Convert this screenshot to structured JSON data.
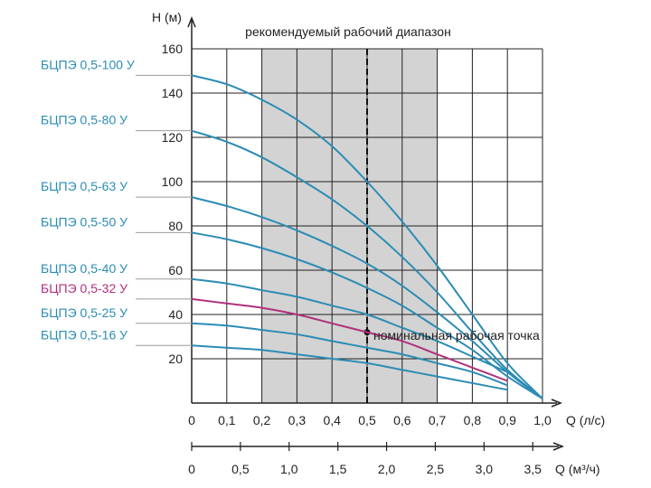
{
  "chart_data": {
    "type": "line",
    "title": "",
    "ylabel": "H (м)",
    "xlabel": "Q (л/с)",
    "xlabel_secondary": "Q (м³/ч)",
    "xlim": [
      0,
      1.0
    ],
    "ylim": [
      0,
      160
    ],
    "xticks": [
      0,
      0.1,
      0.2,
      0.3,
      0.4,
      0.5,
      0.6,
      0.7,
      0.8,
      0.9,
      1.0
    ],
    "xtick_labels": [
      "0",
      "0,1",
      "0,2",
      "0,3",
      "0,4",
      "0,5",
      "0,6",
      "0,7",
      "0,8",
      "0,9",
      "1,0"
    ],
    "yticks": [
      20,
      40,
      60,
      80,
      100,
      120,
      140,
      160
    ],
    "ytick_labels": [
      "20",
      "40",
      "60",
      "80",
      "100",
      "120",
      "140",
      "160"
    ],
    "secondary_xaxis": {
      "ticks": [
        0,
        0.5,
        1.0,
        1.5,
        2.0,
        2.5,
        3.0,
        3.5
      ],
      "tick_labels": [
        "0",
        "0,5",
        "1,0",
        "1,5",
        "2,0",
        "2,5",
        "3,0",
        "3,5"
      ],
      "lim": [
        0,
        3.6
      ]
    },
    "grid": true,
    "recommended_range": {
      "label": "рекомендуемый рабочий диапазон",
      "x_from": 0.2,
      "x_to": 0.7
    },
    "nominal_point": {
      "label": "номинальная рабочая точка",
      "x": 0.5
    },
    "series": [
      {
        "name": "БЦПЭ 0,5-100 У",
        "color": "#2b8cb4",
        "x": [
          0,
          0.1,
          0.2,
          0.3,
          0.4,
          0.5,
          0.6,
          0.7,
          0.8,
          0.9,
          1.0
        ],
        "y": [
          148,
          144,
          137,
          128,
          116,
          100,
          82,
          62,
          40,
          18,
          2
        ]
      },
      {
        "name": "БЦПЭ 0,5-80 У",
        "color": "#2b8cb4",
        "x": [
          0,
          0.1,
          0.2,
          0.3,
          0.4,
          0.5,
          0.6,
          0.7,
          0.8,
          0.9,
          1.0
        ],
        "y": [
          123,
          118,
          111,
          102,
          92,
          80,
          66,
          50,
          32,
          15,
          2
        ]
      },
      {
        "name": "БЦПЭ 0,5-63 У",
        "color": "#2b8cb4",
        "x": [
          0,
          0.1,
          0.2,
          0.3,
          0.4,
          0.5,
          0.6,
          0.7,
          0.8,
          0.9,
          1.0
        ],
        "y": [
          93,
          89,
          84,
          78,
          71,
          63,
          53,
          41,
          28,
          14,
          2
        ]
      },
      {
        "name": "БЦПЭ 0,5-50 У",
        "color": "#2b8cb4",
        "x": [
          0,
          0.1,
          0.2,
          0.3,
          0.4,
          0.5,
          0.6,
          0.7,
          0.8,
          0.9,
          1.0
        ],
        "y": [
          77,
          74,
          70,
          65,
          59,
          52,
          44,
          34,
          24,
          12,
          2
        ]
      },
      {
        "name": "БЦПЭ 0,5-40 У",
        "color": "#2b8cb4",
        "x": [
          0,
          0.1,
          0.2,
          0.3,
          0.4,
          0.5,
          0.6,
          0.7,
          0.8,
          0.9
        ],
        "y": [
          56,
          54,
          51,
          48,
          44,
          40,
          34,
          28,
          21,
          14
        ]
      },
      {
        "name": "БЦПЭ 0,5-32 У",
        "color": "#b0307c",
        "x": [
          0,
          0.1,
          0.2,
          0.3,
          0.4,
          0.5,
          0.6,
          0.7,
          0.8,
          0.9
        ],
        "y": [
          47,
          45,
          43,
          40,
          36,
          32,
          28,
          22,
          16,
          10
        ]
      },
      {
        "name": "БЦПЭ 0,5-25 У",
        "color": "#2b8cb4",
        "x": [
          0,
          0.1,
          0.2,
          0.3,
          0.4,
          0.5,
          0.6,
          0.7,
          0.8,
          0.9
        ],
        "y": [
          36,
          35,
          33,
          31,
          28,
          25,
          22,
          18,
          14,
          8
        ]
      },
      {
        "name": "БЦПЭ 0,5-16 У",
        "color": "#2b8cb4",
        "x": [
          0,
          0.1,
          0.2,
          0.3,
          0.4,
          0.5,
          0.6,
          0.7,
          0.8,
          0.9
        ],
        "y": [
          26,
          25,
          24,
          22,
          20,
          18,
          15,
          12,
          9,
          6
        ]
      }
    ]
  },
  "colors": {
    "grid": "#222222",
    "range_fill": "#d3d3d3",
    "axis": "#222222"
  }
}
